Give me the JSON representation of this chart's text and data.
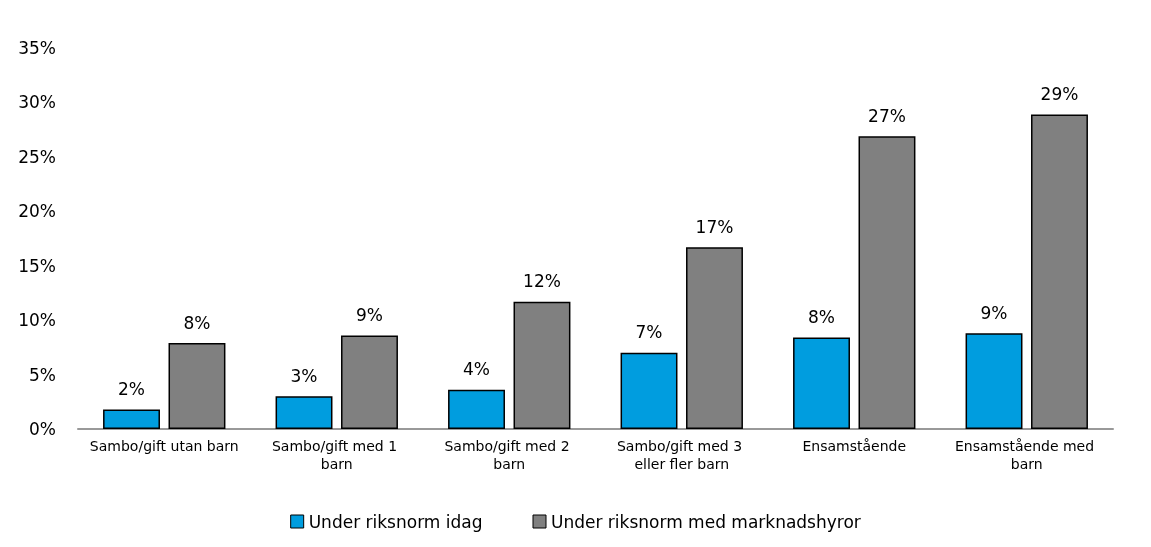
{
  "chart_data": {
    "type": "bar",
    "categories": [
      "Sambo/gift utan barn",
      "Sambo/gift med 1 barn",
      "Sambo/gift med 2 barn",
      "Sambo/gift med 3 eller fler barn",
      "Ensamstående",
      "Ensamstående med barn"
    ],
    "series": [
      {
        "name": "Under riksnorm idag",
        "color": "#009ddf",
        "values": [
          1.8,
          3.0,
          3.6,
          7.0,
          8.4,
          8.8
        ],
        "value_labels": [
          "2%",
          "3%",
          "4%",
          "7%",
          "8%",
          "9%"
        ]
      },
      {
        "name": "Under riksnorm med marknadshyror",
        "color": "#808080",
        "values": [
          7.9,
          8.6,
          11.7,
          16.7,
          26.9,
          28.9
        ],
        "value_labels": [
          "8%",
          "9%",
          "12%",
          "17%",
          "27%",
          "29%"
        ]
      }
    ],
    "ylim": [
      0,
      35
    ],
    "yticks": [
      {
        "value": 0,
        "label": "0%"
      },
      {
        "value": 5,
        "label": "5%"
      },
      {
        "value": 10,
        "label": "10%"
      },
      {
        "value": 15,
        "label": "15%"
      },
      {
        "value": 20,
        "label": "20%"
      },
      {
        "value": 25,
        "label": "25%"
      },
      {
        "value": 30,
        "label": "30%"
      },
      {
        "value": 35,
        "label": "35%"
      }
    ],
    "grid": false,
    "legend": "bottom"
  }
}
